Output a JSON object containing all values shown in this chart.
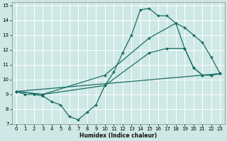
{
  "xlabel": "Humidex (Indice chaleur)",
  "bg_color": "#cde8e5",
  "grid_color": "#b8d8d5",
  "line_color": "#1a6e64",
  "xlim": [
    -0.5,
    23.5
  ],
  "ylim": [
    7,
    15.2
  ],
  "yticks": [
    7,
    8,
    9,
    10,
    11,
    12,
    13,
    14,
    15
  ],
  "xticks": [
    0,
    1,
    2,
    3,
    4,
    5,
    6,
    7,
    8,
    9,
    10,
    11,
    12,
    13,
    14,
    15,
    16,
    17,
    18,
    19,
    20,
    21,
    22,
    23
  ],
  "line1": {
    "x": [
      0,
      1,
      2,
      3,
      4,
      5,
      6,
      7,
      8,
      9,
      10,
      11,
      12,
      13,
      14,
      15,
      16,
      17,
      18,
      19,
      20,
      21,
      22,
      23
    ],
    "y": [
      9.2,
      9.0,
      9.0,
      8.9,
      8.5,
      8.3,
      7.5,
      7.3,
      7.8,
      8.3,
      9.6,
      10.5,
      11.8,
      13.0,
      14.7,
      14.8,
      14.3,
      14.3,
      13.8,
      12.1,
      10.8,
      10.3,
      10.3,
      10.4
    ]
  },
  "line2": {
    "x": [
      0,
      23
    ],
    "y": [
      9.2,
      10.4
    ]
  },
  "line3": {
    "x": [
      0,
      3,
      10,
      15,
      18,
      19,
      20,
      21,
      22,
      23
    ],
    "y": [
      9.2,
      9.0,
      10.3,
      12.8,
      13.8,
      13.5,
      13.0,
      12.5,
      11.5,
      10.4
    ]
  },
  "line4": {
    "x": [
      0,
      3,
      10,
      15,
      17,
      19,
      20,
      21,
      22,
      23
    ],
    "y": [
      9.2,
      9.0,
      9.6,
      11.8,
      12.1,
      12.1,
      10.8,
      10.3,
      10.3,
      10.4
    ]
  }
}
